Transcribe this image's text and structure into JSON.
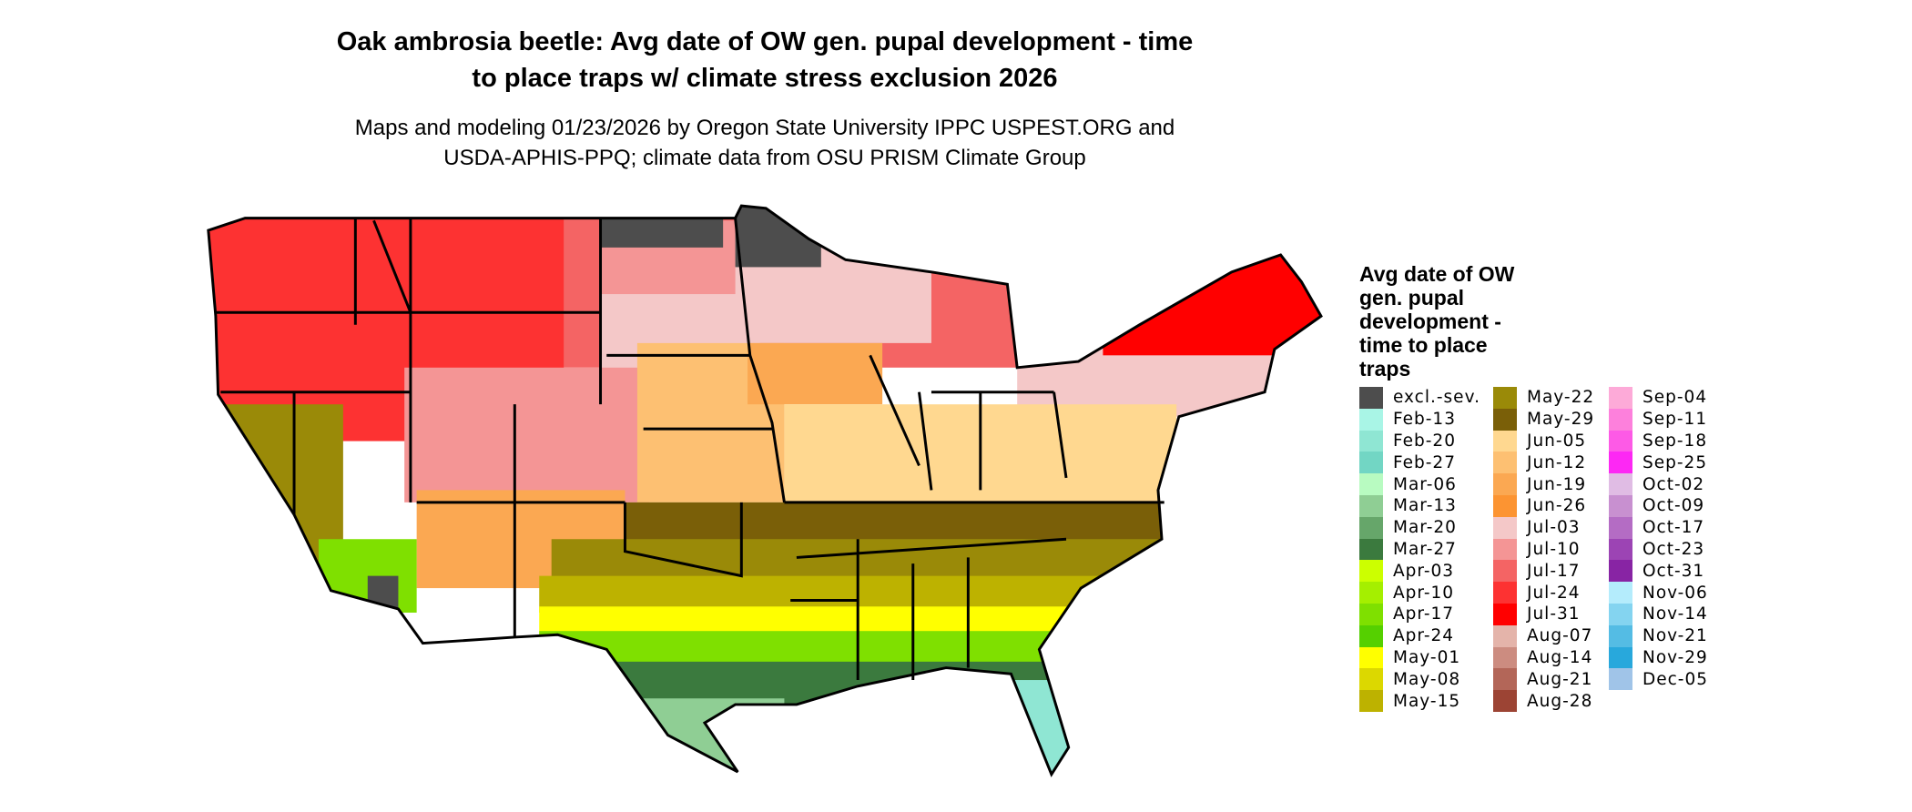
{
  "title": [
    "Oak ambrosia beetle: Avg date of OW gen. pupal development - time",
    "to place traps w/ climate stress exclusion 2026"
  ],
  "subtitle": [
    "Maps and modeling 01/23/2026 by Oregon State University IPPC USPEST.ORG and",
    "USDA-APHIS-PPQ; climate data from OSU PRISM Climate Group"
  ],
  "legend": {
    "title": "Avg date of OW gen. pupal development - time to place traps",
    "columns": [
      [
        {
          "label": "excl.-sev.",
          "color": "#4d4d4d"
        },
        {
          "label": "Feb-13",
          "color": "#a9f5e6"
        },
        {
          "label": "Feb-20",
          "color": "#8fe6d3"
        },
        {
          "label": "Feb-27",
          "color": "#72d6c4"
        },
        {
          "label": "Mar-06",
          "color": "#b8fbc1"
        },
        {
          "label": "Mar-13",
          "color": "#8fce94"
        },
        {
          "label": "Mar-20",
          "color": "#66a66a"
        },
        {
          "label": "Mar-27",
          "color": "#3b7a3e"
        },
        {
          "label": "Apr-03",
          "color": "#ccff00"
        },
        {
          "label": "Apr-10",
          "color": "#a5ef00"
        },
        {
          "label": "Apr-17",
          "color": "#7fe000"
        },
        {
          "label": "Apr-24",
          "color": "#55d000"
        },
        {
          "label": "May-01",
          "color": "#ffff00"
        },
        {
          "label": "May-08",
          "color": "#dcd800"
        },
        {
          "label": "May-15",
          "color": "#bdb200"
        }
      ],
      [
        {
          "label": "May-22",
          "color": "#9a8a08"
        },
        {
          "label": "May-29",
          "color": "#7a5f08"
        },
        {
          "label": "Jun-05",
          "color": "#ffd890"
        },
        {
          "label": "Jun-12",
          "color": "#fdc072"
        },
        {
          "label": "Jun-19",
          "color": "#fba852"
        },
        {
          "label": "Jun-26",
          "color": "#fc9432"
        },
        {
          "label": "Jul-03",
          "color": "#f4c8c8"
        },
        {
          "label": "Jul-10",
          "color": "#f49595"
        },
        {
          "label": "Jul-17",
          "color": "#f46464"
        },
        {
          "label": "Jul-24",
          "color": "#fd3232"
        },
        {
          "label": "Jul-31",
          "color": "#ff0000"
        },
        {
          "label": "Aug-07",
          "color": "#e4b4aa"
        },
        {
          "label": "Aug-14",
          "color": "#cc8c80"
        },
        {
          "label": "Aug-21",
          "color": "#b36658"
        },
        {
          "label": "Aug-28",
          "color": "#9c4434"
        }
      ],
      [
        {
          "label": "Sep-04",
          "color": "#fdaad8"
        },
        {
          "label": "Sep-11",
          "color": "#fd80dc"
        },
        {
          "label": "Sep-18",
          "color": "#fd5ae6"
        },
        {
          "label": "Sep-25",
          "color": "#fd28f4"
        },
        {
          "label": "Oct-02",
          "color": "#e0bce4"
        },
        {
          "label": "Oct-09",
          "color": "#c890d0"
        },
        {
          "label": "Oct-17",
          "color": "#b46cc4"
        },
        {
          "label": "Oct-23",
          "color": "#9c44b4"
        },
        {
          "label": "Oct-31",
          "color": "#8824a4"
        },
        {
          "label": "Nov-06",
          "color": "#b4ecfc"
        },
        {
          "label": "Nov-14",
          "color": "#84d4f0"
        },
        {
          "label": "Nov-21",
          "color": "#54bce4"
        },
        {
          "label": "Nov-29",
          "color": "#28a8dc"
        },
        {
          "label": "Dec-05",
          "color": "#a0c4e8"
        }
      ]
    ]
  }
}
